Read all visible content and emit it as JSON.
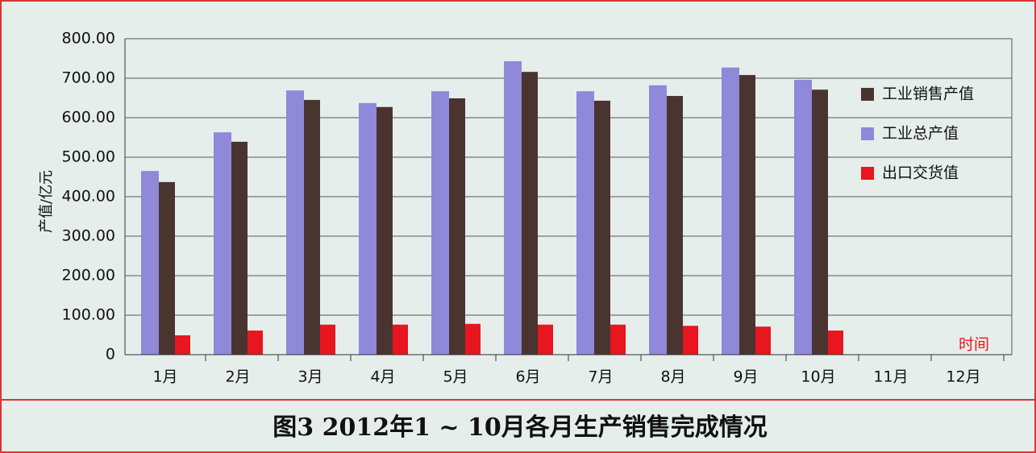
{
  "chart_data": {
    "type": "bar",
    "caption": "图3 2012年1 ~ 10月各月生产销售完成情况",
    "y_axis_label": "产值/亿元",
    "x_axis_label": "时间",
    "categories": [
      "1月",
      "2月",
      "3月",
      "4月",
      "5月",
      "6月",
      "7月",
      "8月",
      "9月",
      "10月",
      "11月",
      "12月"
    ],
    "series": [
      {
        "name": "工业销售产值",
        "color": "#4a3430",
        "values": [
          437,
          539,
          645,
          627,
          649,
          716,
          643,
          655,
          708,
          671,
          null,
          null
        ]
      },
      {
        "name": "工业总产值",
        "color": "#9088d8",
        "values": [
          465,
          563,
          669,
          637,
          667,
          743,
          667,
          682,
          727,
          696,
          null,
          null
        ]
      },
      {
        "name": "出口交货值",
        "color": "#e8161e",
        "values": [
          49,
          61,
          76,
          76,
          78,
          76,
          76,
          73,
          71,
          61,
          null,
          null
        ]
      }
    ],
    "ylim": [
      0,
      800
    ],
    "yticks": [
      0,
      {
        "value": 100,
        "label": "100.00"
      },
      {
        "value": 200,
        "label": "200.00"
      },
      {
        "value": 300,
        "label": "300.00"
      },
      {
        "value": 400,
        "label": "400.00"
      },
      {
        "value": 500,
        "label": "500.00"
      },
      {
        "value": 600,
        "label": "600.00"
      },
      {
        "value": 700,
        "label": "700.00"
      },
      {
        "value": 800,
        "label": "800.00"
      }
    ],
    "grid": true,
    "legend": "right"
  }
}
